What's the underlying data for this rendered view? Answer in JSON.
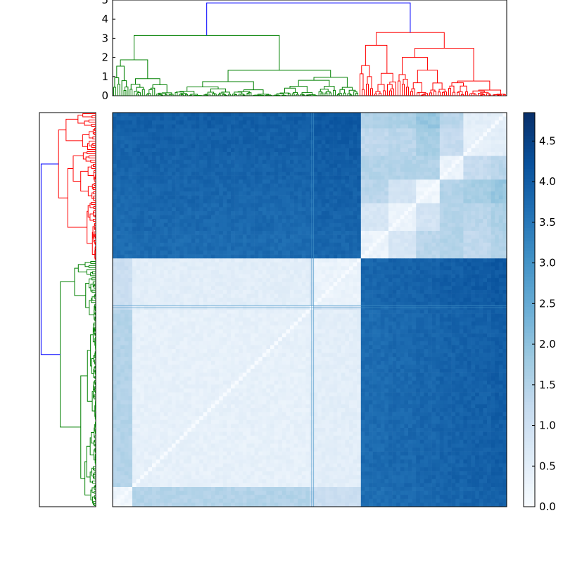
{
  "chart_data": [
    {
      "type": "dendrogram",
      "panel": "top",
      "orientation": "top",
      "ylim": [
        0,
        5
      ],
      "y_ticks": [
        "0",
        "1",
        "2",
        "3",
        "4",
        "5"
      ],
      "colors": {
        "root": "#0000ff",
        "cluster_1": "#008000",
        "cluster_2": "#ff0000"
      },
      "root_link": {
        "height": 4.85,
        "children": [
          "cluster_1",
          "cluster_2"
        ]
      },
      "clusters": [
        {
          "id": "cluster_1",
          "color": "#008000",
          "top_height": 3.15,
          "major_merge_heights": [
            3.15,
            2.1,
            1.6,
            1.5,
            1.3,
            1.0,
            0.8
          ]
        },
        {
          "id": "cluster_2",
          "color": "#ff0000",
          "top_height": 3.3,
          "major_merge_heights": [
            3.3,
            2.4,
            1.9,
            1.8,
            1.65,
            1.5,
            1.4,
            1.2
          ]
        }
      ]
    },
    {
      "type": "dendrogram",
      "panel": "left",
      "orientation": "left",
      "colors": {
        "root": "#0000ff",
        "cluster_1": "#008000",
        "cluster_2": "#ff0000"
      },
      "root_link": {
        "height": 4.85,
        "children": [
          "cluster_2",
          "cluster_1"
        ]
      },
      "clusters": [
        {
          "id": "cluster_2",
          "color": "#ff0000",
          "top_height": 3.3
        },
        {
          "id": "cluster_1",
          "color": "#008000",
          "top_height": 3.15
        }
      ]
    },
    {
      "type": "heatmap",
      "panel": "center",
      "colormap": "Blues",
      "vmin": 0,
      "vmax": 4.85,
      "block_boundaries": [
        0,
        0.055,
        0.505,
        0.51,
        0.63,
        0.7,
        0.77,
        0.83,
        0.895,
        0.96,
        1.0
      ],
      "block_matrix": [
        [
          0.2,
          1.5,
          1.2,
          1.1,
          1.6,
          1.5,
          1.7,
          1.5,
          1.4,
          1.8
        ],
        [
          1.5,
          0.4,
          0.6,
          0.5,
          1.7,
          1.9,
          1.8,
          1.8,
          1.7,
          1.9
        ],
        [
          1.2,
          0.6,
          0.4,
          0.9,
          1.6,
          1.7,
          1.7,
          1.7,
          1.6,
          1.8
        ],
        [
          1.1,
          0.5,
          0.9,
          0.3,
          1.4,
          1.6,
          1.5,
          1.5,
          1.5,
          1.6
        ],
        [
          1.6,
          1.7,
          1.6,
          1.4,
          0.3,
          0.8,
          1.4,
          1.5,
          1.3,
          1.5
        ],
        [
          1.5,
          1.9,
          1.7,
          1.6,
          0.8,
          0.3,
          0.9,
          1.5,
          1.4,
          1.6
        ],
        [
          1.7,
          1.8,
          1.7,
          1.5,
          1.4,
          0.9,
          0.2,
          1.5,
          1.7,
          1.9
        ],
        [
          1.5,
          1.8,
          1.7,
          1.5,
          1.5,
          1.5,
          1.5,
          0.3,
          1.2,
          1.4
        ],
        [
          1.4,
          1.7,
          1.6,
          1.5,
          1.3,
          1.4,
          1.7,
          1.2,
          0.4,
          0.5
        ],
        [
          1.8,
          1.9,
          1.8,
          1.6,
          1.5,
          1.6,
          1.9,
          1.4,
          0.5,
          0.4
        ]
      ],
      "cross_block_value_approx": 3.9
    },
    {
      "type": "colorbar",
      "panel": "right",
      "colormap": "Blues",
      "vmin": 0,
      "vmax": 4.85,
      "ticks": [
        "0.0",
        "0.5",
        "1.0",
        "1.5",
        "2.0",
        "2.5",
        "3.0",
        "3.5",
        "4.0",
        "4.5"
      ]
    }
  ]
}
